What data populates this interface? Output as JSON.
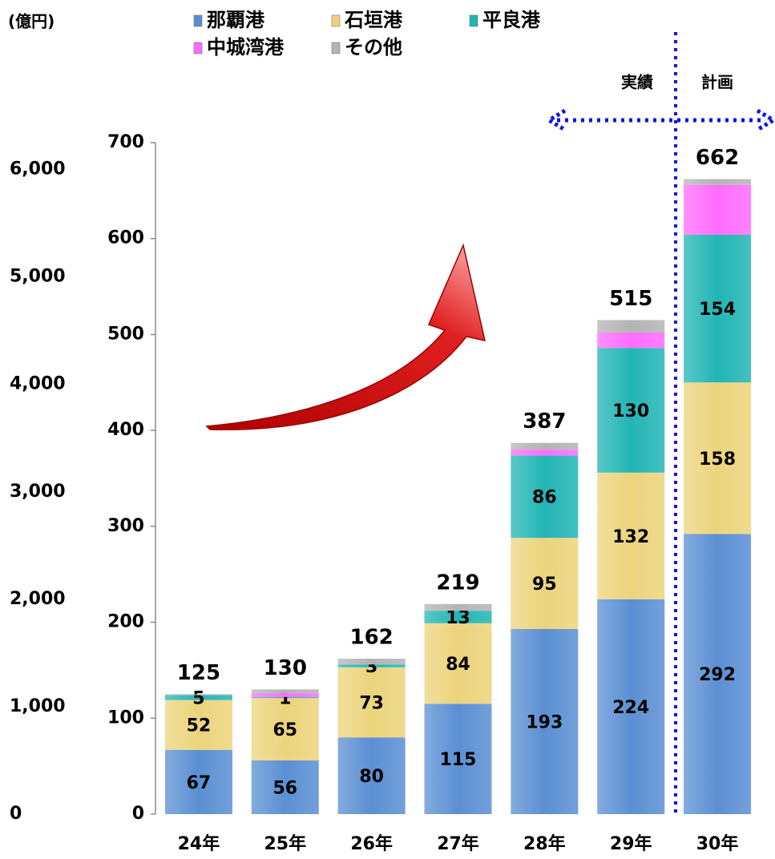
{
  "chart_data": {
    "type": "stacked_bar",
    "unit_label": "(億円)",
    "annotations": [
      "実績",
      "計画"
    ],
    "categories": [
      "24年",
      "25年",
      "26年",
      "27年",
      "28年",
      "29年",
      "30年"
    ],
    "series": [
      {
        "name": "那覇港",
        "color": "#5b8fd3",
        "show_labels": true,
        "values": [
          67,
          56,
          80,
          115,
          193,
          224,
          292
        ]
      },
      {
        "name": "石垣港",
        "color": "#ecd47c",
        "show_labels": true,
        "values": [
          52,
          65,
          73,
          84,
          95,
          132,
          158
        ]
      },
      {
        "name": "平良港",
        "color": "#22b5b5",
        "show_labels": true,
        "values": [
          5,
          1,
          3,
          13,
          86,
          130,
          154
        ]
      },
      {
        "name": "中城湾港",
        "color": "#ff6cff",
        "show_labels": false,
        "values": [
          0,
          4,
          0,
          0,
          6,
          16,
          52
        ]
      },
      {
        "name": "その他",
        "color": "#b4b4b4",
        "show_labels": false,
        "values": [
          1,
          4,
          6,
          7,
          7,
          13,
          6
        ]
      }
    ],
    "totals": [
      125,
      130,
      162,
      219,
      387,
      515,
      662
    ],
    "ylim": [
      0,
      700
    ],
    "yticks": [
      0,
      100,
      200,
      300,
      400,
      500,
      600,
      700
    ],
    "y2lim": [
      0,
      6250
    ],
    "y2ticks": [
      0,
      {
        "value": 1000,
        "label": "1,000"
      },
      {
        "value": 2000,
        "label": "2,000"
      },
      {
        "value": 3000,
        "label": "3,000"
      },
      {
        "value": 4000,
        "label": "4,000"
      },
      {
        "value": 5000,
        "label": "5,000"
      },
      {
        "value": 6000,
        "label": "6,000"
      }
    ]
  }
}
